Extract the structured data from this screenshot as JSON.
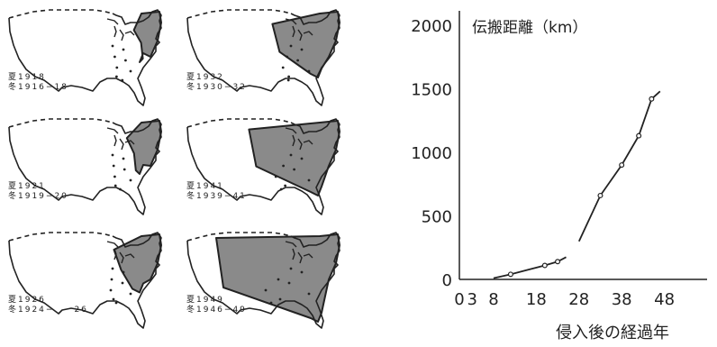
{
  "panels": [
    {
      "summer": "夏1918",
      "winter": "冬1916−18",
      "spread": 0.08
    },
    {
      "summer": "夏1932",
      "winter": "冬1930−32",
      "spread": 0.42
    },
    {
      "summer": "夏1921",
      "winter": "冬1919−20",
      "spread": 0.14
    },
    {
      "summer": "夏1941",
      "winter": "冬1939−41",
      "spread": 0.62
    },
    {
      "summer": "夏1926",
      "winter": "冬1924−　　26",
      "spread": 0.25
    },
    {
      "summer": "夏1949",
      "winter": "冬1946−49",
      "spread": 0.9
    }
  ],
  "chart_data": {
    "type": "line",
    "ylabel": "伝搬距離（km）",
    "xlabel": "侵入後の経過年",
    "xlim": [
      0,
      58
    ],
    "ylim": [
      0,
      2000
    ],
    "xticks": [
      0,
      3,
      8,
      18,
      28,
      38,
      48
    ],
    "yticks": [
      0,
      500,
      1000,
      1500,
      2000
    ],
    "series": [
      {
        "x": [
          8,
          12,
          16,
          20,
          23,
          25
        ],
        "y": [
          10,
          40,
          75,
          110,
          140,
          175
        ],
        "points": [
          12,
          20,
          23
        ]
      },
      {
        "x": [
          28,
          33,
          38,
          42,
          45,
          47
        ],
        "y": [
          300,
          660,
          900,
          1130,
          1420,
          1480
        ],
        "points": [
          33,
          38,
          42,
          45
        ]
      }
    ]
  }
}
